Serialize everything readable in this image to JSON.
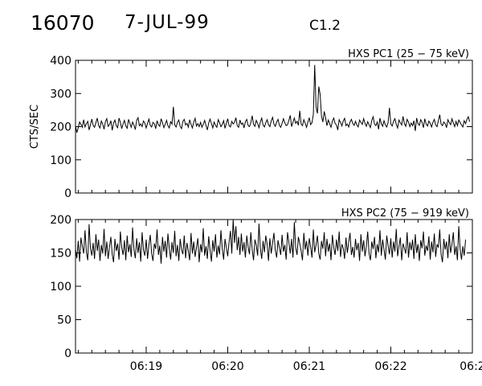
{
  "header": {
    "event_id": "16070",
    "date": "7-JUL-99",
    "flare_class": "C1.2"
  },
  "chart_data": [
    {
      "type": "line",
      "title": "HXS PC1 (25 − 75 keV)",
      "ylabel": "CTS/SEC",
      "xlabel": "",
      "ylim": [
        0,
        400
      ],
      "yticks": [
        0,
        100,
        200,
        300,
        400
      ],
      "xlim": [
        "06:18:08",
        "06:23:00"
      ],
      "xticks": [],
      "color": "#000000",
      "grid": false,
      "series": [
        {
          "sample_interval_s": 1,
          "values": [
            202,
            182,
            197,
            214,
            207,
            198,
            221,
            199,
            209,
            216,
            190,
            205,
            223,
            204,
            198,
            212,
            226,
            203,
            196,
            217,
            208,
            192,
            215,
            224,
            201,
            206,
            218,
            189,
            211,
            220,
            203,
            197,
            226,
            213,
            194,
            208,
            219,
            202,
            195,
            222,
            210,
            198,
            214,
            205,
            191,
            219,
            227,
            203,
            208,
            200,
            217,
            211,
            196,
            210,
            223,
            204,
            199,
            213,
            209,
            194,
            218,
            206,
            201,
            224,
            212,
            197,
            207,
            219,
            203,
            196,
            215,
            208,
            260,
            205,
            199,
            213,
            220,
            201,
            194,
            216,
            222,
            205,
            210,
            198,
            221,
            207,
            196,
            214,
            225,
            202,
            209,
            200,
            213,
            198,
            207,
            219,
            204,
            190,
            211,
            223,
            209,
            196,
            214,
            204,
            198,
            221,
            212,
            200,
            207,
            218,
            195,
            210,
            224,
            203,
            199,
            216,
            208,
            213,
            227,
            203,
            198,
            220,
            207,
            211,
            196,
            215,
            222,
            204,
            200,
            212,
            233,
            207,
            201,
            219,
            210,
            197,
            214,
            226,
            205,
            199,
            212,
            221,
            206,
            200,
            217,
            228,
            208,
            201,
            214,
            222,
            204,
            198,
            210,
            224,
            212,
            203,
            206,
            219,
            234,
            200,
            213,
            226,
            210,
            216,
            204,
            248,
            208,
            203,
            221,
            210,
            198,
            214,
            227,
            206,
            212,
            237,
            386,
            259,
            240,
            321,
            297,
            231,
            214,
            246,
            227,
            203,
            220,
            209,
            198,
            216,
            226,
            210,
            205,
            190,
            221,
            213,
            202,
            217,
            225,
            203,
            208,
            199,
            214,
            222,
            210,
            204,
            216,
            205,
            199,
            220,
            213,
            207,
            224,
            210,
            201,
            215,
            206,
            197,
            219,
            230,
            208,
            203,
            214,
            192,
            226,
            209,
            201,
            218,
            205,
            199,
            213,
            257,
            208,
            202,
            216,
            224,
            207,
            196,
            220,
            212,
            205,
            231,
            209,
            201,
            222,
            214,
            200,
            211,
            203,
            218,
            187,
            226,
            209,
            204,
            221,
            213,
            197,
            224,
            208,
            202,
            217,
            210,
            199,
            213,
            222,
            205,
            200,
            218,
            236,
            208,
            203,
            214,
            209,
            197,
            221,
            212,
            206,
            224,
            211,
            200,
            216,
            203,
            220,
            213,
            205,
            199,
            218,
            209,
            222,
            230,
            215
          ]
        }
      ]
    },
    {
      "type": "line",
      "title": "HXS PC2 (75 − 919 keV)",
      "ylabel": "",
      "xlabel": "",
      "ylim": [
        0,
        200
      ],
      "yticks": [
        0,
        50,
        100,
        150,
        200
      ],
      "xlim": [
        "06:18:08",
        "06:23:00"
      ],
      "xticks": [
        "06:19",
        "06:20",
        "06:21",
        "06:22",
        "06:2"
      ],
      "color": "#000000",
      "grid": false,
      "series": [
        {
          "sample_interval_s": 1,
          "values": [
            155,
            142,
            168,
            137,
            173,
            160,
            149,
            184,
            151,
            139,
            193,
            157,
            146,
            165,
            141,
            178,
            153,
            170,
            138,
            162,
            149,
            186,
            145,
            167,
            141,
            159,
            174,
            148,
            136,
            171,
            153,
            164,
            140,
            182,
            158,
            147,
            169,
            139,
            176,
            151,
            163,
            144,
            188,
            155,
            142,
            172,
            150,
            166,
            137,
            181,
            154,
            146,
            170,
            141,
            162,
            177,
            149,
            138,
            164,
            156,
            185,
            147,
            161,
            134,
            174,
            152,
            168,
            143,
            179,
            157,
            140,
            166,
            150,
            183,
            145,
            162,
            138,
            171,
            155,
            148,
            176,
            142,
            165,
            153,
            139,
            180,
            149,
            167,
            144,
            158,
            172,
            136,
            163,
            151,
            187,
            146,
            160,
            141,
            175,
            154,
            137,
            169,
            152,
            178,
            143,
            161,
            148,
            184,
            156,
            140,
            171,
            158,
            145,
            166,
            183,
            149,
            200,
            165,
            190,
            154,
            174,
            147,
            179,
            152,
            166,
            143,
            176,
            159,
            148,
            181,
            155,
            139,
            170,
            162,
            146,
            194,
            157,
            141,
            168,
            151,
            176,
            163,
            138,
            172,
            149,
            165,
            180,
            154,
            143,
            169,
            158,
            147,
            177,
            152,
            162,
            140,
            181,
            166,
            149,
            171,
            143,
            196,
            158,
            147,
            174,
            164,
            153,
            139,
            180,
            155,
            168,
            146,
            172,
            159,
            143,
            185,
            151,
            162,
            176,
            149,
            140,
            168,
            156,
            181,
            145,
            171,
            152,
            164,
            139,
            177,
            158,
            147,
            170,
            153,
            182,
            144,
            163,
            157,
            141,
            173,
            150,
            166,
            180,
            147,
            159,
            143,
            171,
            154,
            165,
            138,
            178,
            152,
            169,
            145,
            160,
            182,
            149,
            139,
            167,
            156,
            174,
            142,
            163,
            151,
            184,
            146,
            170,
            155,
            140,
            176,
            161,
            148,
            172,
            143,
            167,
            152,
            186,
            145,
            160,
            173,
            139,
            164,
            157,
            149,
            181,
            143,
            166,
            154,
            170,
            141,
            178,
            150,
            163,
            138,
            169,
            157,
            182,
            146,
            161,
            153,
            175,
            140,
            167,
            151,
            179,
            144,
            163,
            158,
            185,
            148,
            136,
            171,
            155,
            167,
            142,
            178,
            150,
            163,
            181,
            147,
            160,
            139,
            190,
            156,
            140,
            160,
            146,
            170
          ]
        }
      ]
    }
  ]
}
